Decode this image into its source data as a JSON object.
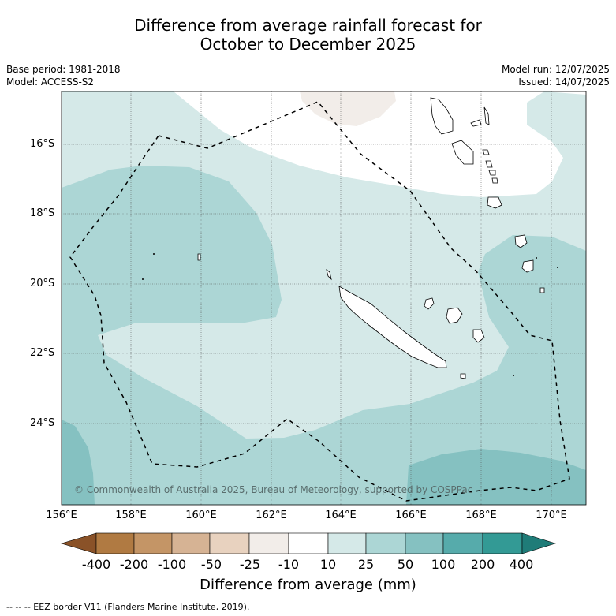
{
  "title_line1": "Difference from average rainfall forecast for",
  "title_line2": "October to December 2025",
  "base_period": "Base period: 1981-2018",
  "model": "Model: ACCESS-S2",
  "model_run": "Model run: 12/07/2025",
  "issued": "Issued: 14/07/2025",
  "lat_labels": [
    "16°S",
    "18°S",
    "20°S",
    "22°S",
    "24°S"
  ],
  "lon_labels": [
    "156°E",
    "158°E",
    "160°E",
    "162°E",
    "164°E",
    "166°E",
    "168°E",
    "170°E"
  ],
  "copyright": "© Commonwealth of Australia 2025, Bureau of Meteorology, supported by COSPPac",
  "colorbar": {
    "ticks": [
      "-400",
      "-200",
      "-100",
      "-50",
      "-25",
      "-10",
      "10",
      "25",
      "50",
      "100",
      "200",
      "400"
    ],
    "colors": [
      "#8a5228",
      "#b07a42",
      "#c49566",
      "#d6b394",
      "#e8d2bf",
      "#f2ede9",
      "#ffffff",
      "#d5e9e8",
      "#acd6d5",
      "#85c1c1",
      "#56abab",
      "#339a95",
      "#1f7c78"
    ],
    "title": "Difference from average (mm)"
  },
  "footnote": "--  --  -- EEZ border V11 (Flanders Marine Institute, 2019)."
}
